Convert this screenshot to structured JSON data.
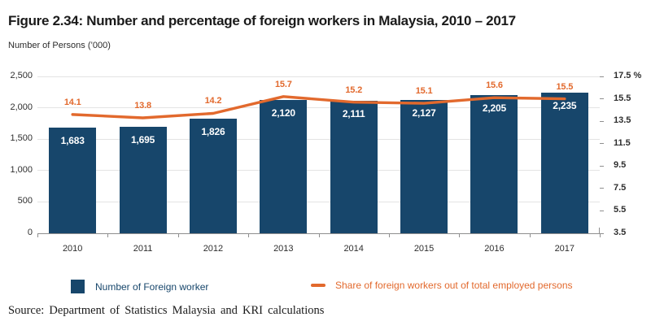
{
  "title": "Figure 2.34: Number and percentage of foreign workers in Malaysia, 2010 – 2017",
  "subtitle": "Number of Persons (’000)",
  "source": "Source: Department of Statistics Malaysia and KRI calculations",
  "legend": [
    {
      "label": "Number of Foreign worker",
      "type": "bar"
    },
    {
      "label": "Share of foreign workers out of total employed persons",
      "type": "line"
    }
  ],
  "colors": {
    "bar": "#17466B",
    "line": "#E2692D",
    "bar_label_text": "#FFFFFF",
    "legend_bar_text": "#17466B",
    "legend_line_text": "#E2692D",
    "grid": "#E4E4E4",
    "axis": "#8F8F8F",
    "axis_text": "#2E2E2E"
  },
  "chart_data": {
    "type": "bar+line",
    "title": "Figure 2.34: Number and percentage of foreign workers in Malaysia, 2010 – 2017",
    "categories": [
      "2010",
      "2011",
      "2012",
      "2013",
      "2014",
      "2015",
      "2016",
      "2017"
    ],
    "series": [
      {
        "name": "Number of Foreign worker",
        "type": "bar",
        "axis": "left",
        "values": [
          1683,
          1695,
          1826,
          2120,
          2111,
          2127,
          2205,
          2235
        ]
      },
      {
        "name": "Share of foreign workers out of total employed persons",
        "type": "line",
        "axis": "right",
        "values": [
          14.1,
          13.8,
          14.2,
          15.7,
          15.2,
          15.1,
          15.6,
          15.5
        ]
      }
    ],
    "left_axis": {
      "label": "Number of Persons (’000)",
      "min": 0,
      "max": 2500,
      "step": 500
    },
    "right_axis": {
      "min": 3.5,
      "max": 17.5,
      "step": 2.0,
      "unit": "%"
    },
    "grid": true,
    "legend_position": "bottom",
    "data_labels": true
  }
}
